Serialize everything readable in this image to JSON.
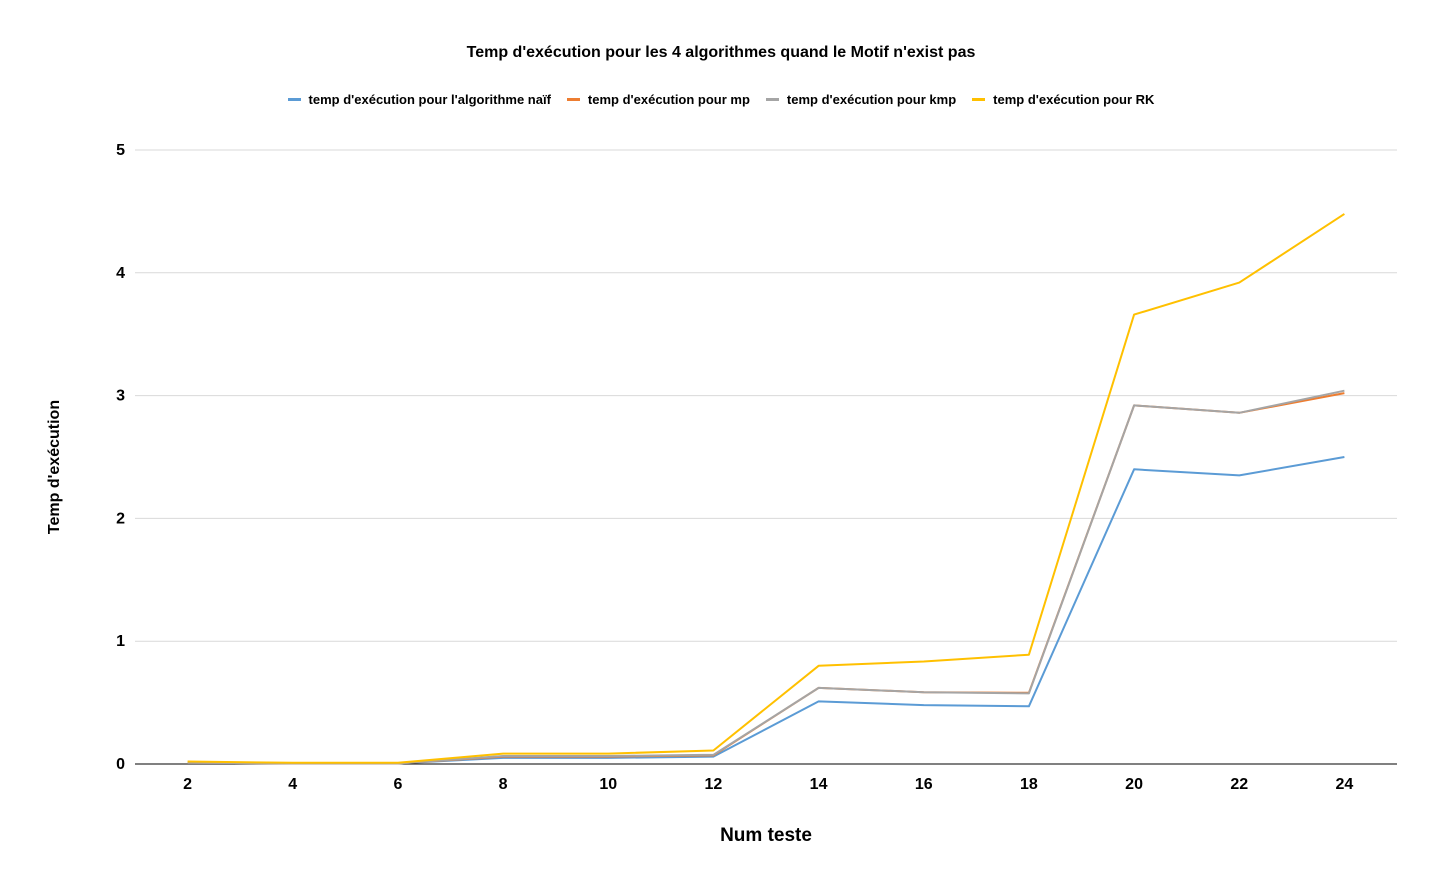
{
  "chart_data": {
    "type": "line",
    "title": "Temp d'exécution pour les 4 algorithmes quand le Motif n'exist pas",
    "xlabel": "Num teste",
    "ylabel": "Temp d'exécution",
    "categories": [
      "2",
      "4",
      "6",
      "8",
      "10",
      "12",
      "14",
      "16",
      "18",
      "20",
      "22",
      "24"
    ],
    "ylim": [
      0,
      5
    ],
    "yticks": [
      "0",
      "1",
      "2",
      "3",
      "4",
      "5"
    ],
    "grid": true,
    "legend_position": "top",
    "series": [
      {
        "name": "temp d'exécution pour l'algorithme naïf",
        "color": "#5b9bd5",
        "values": [
          0.01,
          0.005,
          0.005,
          0.05,
          0.05,
          0.06,
          0.51,
          0.48,
          0.47,
          2.4,
          2.35,
          2.5
        ]
      },
      {
        "name": "temp d'exécution pour mp",
        "color": "#ed7d31",
        "values": [
          0.01,
          0.005,
          0.005,
          0.06,
          0.06,
          0.07,
          0.62,
          0.585,
          0.58,
          2.92,
          2.86,
          3.02
        ]
      },
      {
        "name": "temp d'exécution pour kmp",
        "color": "#a5a5a5",
        "values": [
          0.01,
          0.005,
          0.005,
          0.065,
          0.065,
          0.075,
          0.62,
          0.585,
          0.575,
          2.92,
          2.86,
          3.04
        ]
      },
      {
        "name": "temp d'exécution pour RK",
        "color": "#ffc000",
        "values": [
          0.02,
          0.01,
          0.01,
          0.085,
          0.085,
          0.11,
          0.8,
          0.835,
          0.89,
          3.66,
          3.92,
          4.48
        ]
      }
    ]
  }
}
